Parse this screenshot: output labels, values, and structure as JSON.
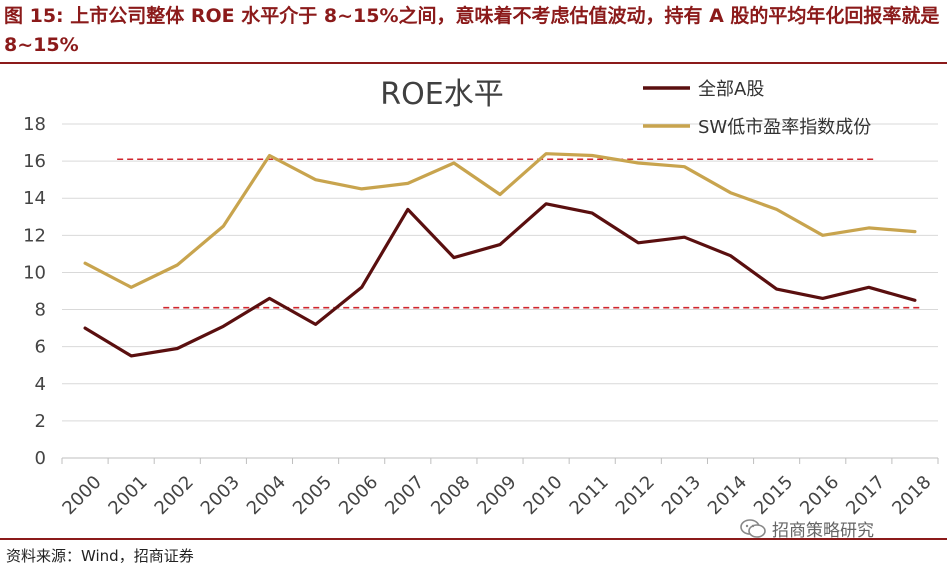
{
  "header": {
    "title": "图 15: 上市公司整体 ROE 水平介于 8~15%之间，意味着不考虑估值波动，持有 A 股的平均年化回报率就是 8~15%"
  },
  "footer": {
    "source": "资料来源：Wind，招商证券",
    "watermark": "招商策略研究",
    "watermark_icon": "wechat-icon"
  },
  "colors": {
    "header": "#8b1a1a",
    "series_all_a": "#5a0f0f",
    "series_sw_low_pe": "#c8a44e",
    "reference_lines": "#d0262e",
    "grid": "#d9d9d9",
    "axis_text": "#444444"
  },
  "chart_data": {
    "type": "line",
    "title": "ROE水平",
    "xlabel": "",
    "ylabel": "",
    "ylim": [
      0,
      18
    ],
    "yticks": [
      0,
      2,
      4,
      6,
      8,
      10,
      12,
      14,
      16,
      18
    ],
    "grid": true,
    "legend_position": "top-right",
    "x": [
      "2000",
      "2001",
      "2002",
      "2003",
      "2004",
      "2005",
      "2006",
      "2007",
      "2008",
      "2009",
      "2010",
      "2011",
      "2012",
      "2013",
      "2014",
      "2015",
      "2016",
      "2017",
      "2018"
    ],
    "series": [
      {
        "name": "全部A股",
        "values": [
          7.0,
          5.5,
          5.9,
          7.1,
          8.6,
          7.2,
          9.2,
          13.4,
          10.8,
          11.5,
          13.7,
          13.2,
          11.6,
          11.9,
          10.9,
          9.1,
          8.6,
          9.2,
          8.5
        ]
      },
      {
        "name": "SW低市盈率指数成份",
        "values": [
          10.5,
          9.2,
          10.4,
          12.5,
          16.3,
          15.0,
          14.5,
          14.8,
          15.9,
          14.2,
          16.4,
          16.3,
          15.9,
          15.7,
          14.3,
          13.4,
          12.0,
          12.4,
          12.2
        ]
      }
    ],
    "reference_lines": [
      {
        "value": 16.1,
        "from": "2001",
        "to": "2017"
      },
      {
        "value": 8.1,
        "from": "2002",
        "to": "2018"
      }
    ]
  }
}
